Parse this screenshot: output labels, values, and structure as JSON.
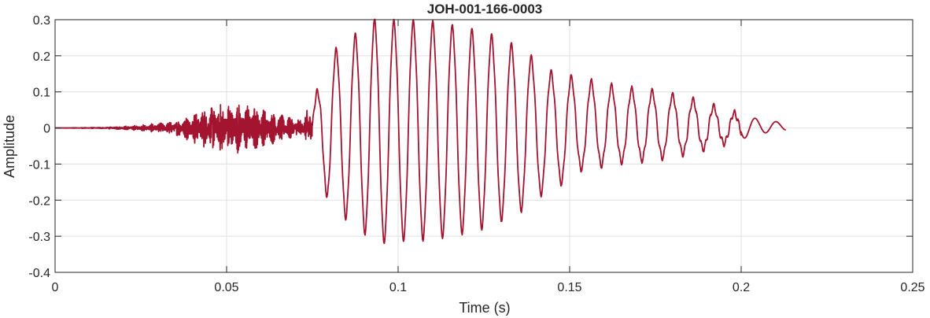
{
  "chart_data": {
    "type": "line",
    "title": "JOH-001-166-0003",
    "xlabel": "Time (s)",
    "ylabel": "Amplitude",
    "xlim": [
      0,
      0.25
    ],
    "ylim": [
      -0.4,
      0.3
    ],
    "xticks": [
      0,
      0.05,
      0.1,
      0.15,
      0.2,
      0.25
    ],
    "xtick_labels": [
      "0",
      "0.05",
      "0.1",
      "0.15",
      "0.2",
      "0.25"
    ],
    "yticks": [
      -0.4,
      -0.3,
      -0.2,
      -0.1,
      0,
      0.1,
      0.2,
      0.3
    ],
    "ytick_labels": [
      "-0.4",
      "-0.3",
      "-0.2",
      "-0.1",
      "0",
      "0.1",
      "0.2",
      "0.3"
    ],
    "grid": true,
    "series": [
      {
        "color": "#A2142F",
        "description_of_segments": "silence 0-0.015 s; low noise 0.015-0.035 s; noisy burst up to ~±0.08 around 0.05 s; voiced oscillation 0.075-0.213 s peaking ~0.29 at 0.109 s and ~-0.32 at 0.094 s, decaying to ~0.01",
        "envelope_points": [
          {
            "x": 0.0,
            "y": 0.0
          },
          {
            "x": 0.015,
            "y": 0.002
          },
          {
            "x": 0.025,
            "y": 0.008
          },
          {
            "x": 0.035,
            "y": 0.02
          },
          {
            "x": 0.042,
            "y": 0.05
          },
          {
            "x": 0.05,
            "y": 0.075
          },
          {
            "x": 0.058,
            "y": 0.065
          },
          {
            "x": 0.065,
            "y": 0.04
          },
          {
            "x": 0.072,
            "y": 0.025
          },
          {
            "x": 0.077,
            "y": 0.11
          },
          {
            "x": 0.08,
            "y": 0.2
          },
          {
            "x": 0.087,
            "y": 0.25
          },
          {
            "x": 0.094,
            "y": 0.3
          },
          {
            "x": 0.1,
            "y": 0.29
          },
          {
            "x": 0.109,
            "y": 0.29
          },
          {
            "x": 0.115,
            "y": 0.28
          },
          {
            "x": 0.125,
            "y": 0.26
          },
          {
            "x": 0.135,
            "y": 0.22
          },
          {
            "x": 0.145,
            "y": 0.15
          },
          {
            "x": 0.155,
            "y": 0.13
          },
          {
            "x": 0.165,
            "y": 0.11
          },
          {
            "x": 0.175,
            "y": 0.1
          },
          {
            "x": 0.185,
            "y": 0.08
          },
          {
            "x": 0.195,
            "y": 0.05
          },
          {
            "x": 0.205,
            "y": 0.02
          },
          {
            "x": 0.213,
            "y": 0.01
          }
        ]
      }
    ]
  }
}
